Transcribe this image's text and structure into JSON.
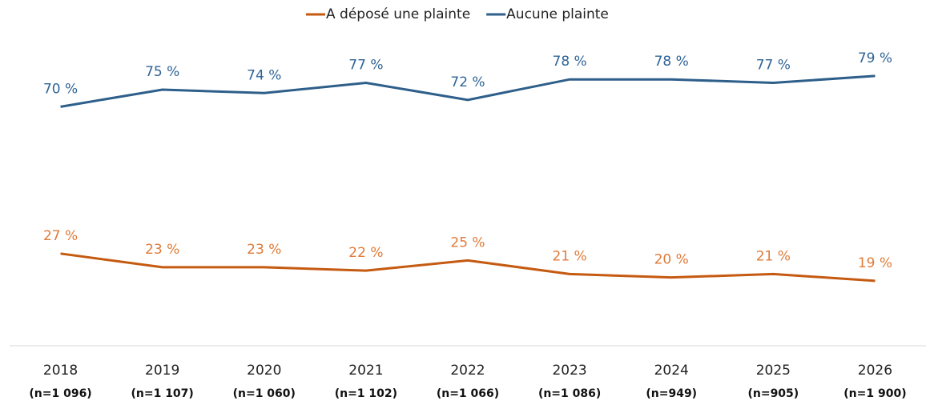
{
  "chart_data": {
    "type": "line",
    "categories": [
      "2018",
      "2019",
      "2020",
      "2021",
      "2022",
      "2023",
      "2024",
      "2025",
      "2026"
    ],
    "sample_sizes": [
      "(n=1 096)",
      "(n=1 107)",
      "(n=1 060)",
      "(n=1 102)",
      "(n=1 066)",
      "(n=1 086)",
      "(n=949)",
      "(n=905)",
      "(n=1 900)"
    ],
    "series": [
      {
        "name": "A déposé une plainte",
        "color": "#c55a11",
        "label_color": "#e07b39",
        "values": [
          27,
          23,
          23,
          22,
          25,
          21,
          20,
          21,
          19
        ],
        "value_labels": [
          "27 %",
          "23 %",
          "23 %",
          "22 %",
          "25 %",
          "21 %",
          "20 %",
          "21 %",
          "19 %"
        ]
      },
      {
        "name": "Aucune plainte",
        "color": "#2e5f8a",
        "label_color": "#2f6496",
        "values": [
          70,
          75,
          74,
          77,
          72,
          78,
          78,
          77,
          79
        ],
        "value_labels": [
          "70 %",
          "75 %",
          "74 %",
          "77 %",
          "72 %",
          "78 %",
          "78 %",
          "77 %",
          "79 %"
        ]
      }
    ],
    "ylim": [
      0,
      90
    ],
    "legend": "top"
  }
}
